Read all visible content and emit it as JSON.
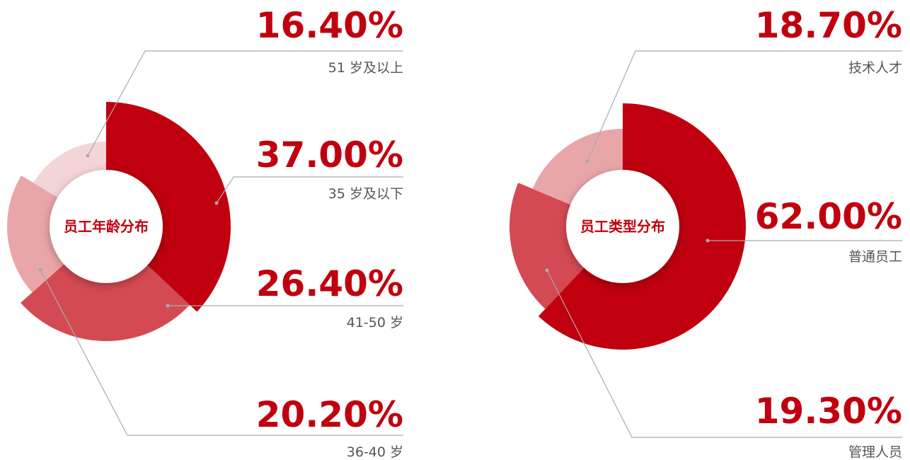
{
  "chart_data": [
    {
      "type": "pie",
      "title": "员工年龄分布",
      "categories": [
        "35 岁及以下",
        "41-50 岁",
        "36-40 岁",
        "51 岁及以上"
      ],
      "values": [
        37.0,
        26.4,
        20.2,
        16.4
      ],
      "value_labels": [
        "37.00%",
        "26.40%",
        "20.20%",
        "16.40%"
      ],
      "colors": [
        "#c0000e",
        "#d44a52",
        "#e9a6a9",
        "#f4d5d7"
      ]
    },
    {
      "type": "pie",
      "title": "员工类型分布",
      "categories": [
        "普通员工",
        "管理人员",
        "技术人才"
      ],
      "values": [
        62.0,
        19.3,
        18.7
      ],
      "value_labels": [
        "62.00%",
        "19.30%",
        "18.70%"
      ],
      "colors": [
        "#c0000e",
        "#d44a52",
        "#e9a6a9"
      ]
    }
  ]
}
